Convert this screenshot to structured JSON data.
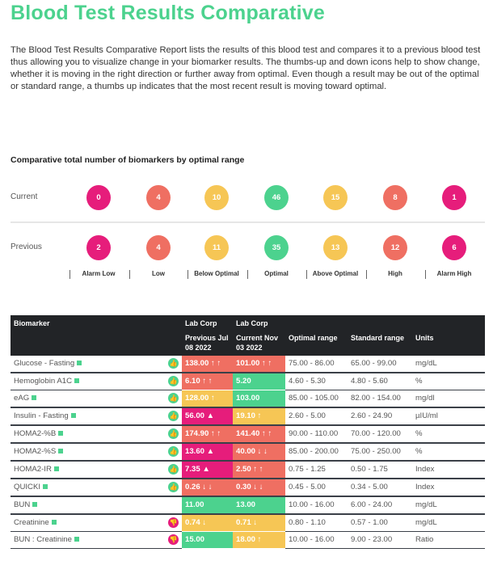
{
  "title": "Blood Test Results Comparative",
  "intro": "The Blood Test Results Comparative Report lists the results of this blood test and compares it to a previous blood test thus allowing you to visualize change in your biomarker results. The thumbs-up and down icons help to show change, whether it is moving in the right direction or further away from optimal. Even though a result may be out of the optimal or standard range, a thumbs up indicates that the most recent result is moving toward optimal.",
  "summary": {
    "title": "Comparative total number of biomarkers by optimal range",
    "current_label": "Current",
    "previous_label": "Previous",
    "categories": [
      "Alarm Low",
      "Low",
      "Below Optimal",
      "Optimal",
      "Above Optimal",
      "High",
      "Alarm High"
    ],
    "colors": [
      "#e61d7b",
      "#ef6f62",
      "#f6c655",
      "#4cd28e",
      "#f6c655",
      "#ef6f62",
      "#e61d7b"
    ],
    "current": [
      "0",
      "4",
      "10",
      "46",
      "15",
      "8",
      "1"
    ],
    "previous": [
      "2",
      "4",
      "11",
      "35",
      "13",
      "12",
      "6"
    ]
  },
  "colors": {
    "red": "#ef6f62",
    "green": "#4cd28e",
    "yellow": "#f6c655",
    "magenta": "#e61d7b"
  },
  "table": {
    "headers": {
      "biomarker": "Biomarker",
      "lab1": "Lab Corp",
      "prev": "Previous Jul 08 2022",
      "lab2": "Lab Corp",
      "curr": "Current Nov 03 2022",
      "optimal": "Optimal range",
      "standard": "Standard range",
      "units": "Units"
    },
    "rows": [
      {
        "name": "Glucose - Fasting",
        "thumb": "up",
        "prev": "138.00 ↑ ↑",
        "pc": "red",
        "curr": "101.00 ↑ ↑",
        "cc": "red",
        "opt": "75.00 - 86.00",
        "std": "65.00 - 99.00",
        "units": "mg/dL",
        "thick": false
      },
      {
        "name": "Hemoglobin A1C",
        "thumb": "up",
        "prev": "6.10 ↑ ↑",
        "pc": "red",
        "curr": "5.20",
        "cc": "green",
        "opt": "4.60 - 5.30",
        "std": "4.80 - 5.60",
        "units": "%",
        "thick": true
      },
      {
        "name": "eAG",
        "thumb": "up",
        "prev": "128.00 ↑",
        "pc": "yellow",
        "curr": "103.00",
        "cc": "green",
        "opt": "85.00 - 105.00",
        "std": "82.00 - 154.00",
        "units": "mg/dl",
        "thick": false
      },
      {
        "name": "Insulin - Fasting",
        "thumb": "up",
        "prev": "56.00 ▲",
        "pc": "magenta",
        "curr": "19.10 ↑",
        "cc": "yellow",
        "opt": "2.60 - 5.00",
        "std": "2.60 - 24.90",
        "units": "µIU/ml",
        "thick": true
      },
      {
        "name": "HOMA2-%B",
        "thumb": "up",
        "prev": "174.90 ↑ ↑",
        "pc": "red",
        "curr": "141.40 ↑ ↑",
        "cc": "red",
        "opt": "90.00 - 110.00",
        "std": "70.00 - 120.00",
        "units": "%",
        "thick": true
      },
      {
        "name": "HOMA2-%S",
        "thumb": "up",
        "prev": "13.60 ▲",
        "pc": "magenta",
        "curr": "40.00 ↓ ↓",
        "cc": "red",
        "opt": "85.00 - 200.00",
        "std": "75.00 - 250.00",
        "units": "%",
        "thick": true
      },
      {
        "name": "HOMA2-IR",
        "thumb": "up",
        "prev": "7.35 ▲",
        "pc": "magenta",
        "curr": "2.50 ↑ ↑",
        "cc": "red",
        "opt": "0.75 - 1.25",
        "std": "0.50 - 1.75",
        "units": "Index",
        "thick": true
      },
      {
        "name": "QUICKI",
        "thumb": "up",
        "prev": "0.26 ↓ ↓",
        "pc": "red",
        "curr": "0.30 ↓ ↓",
        "cc": "red",
        "opt": "0.45 - 5.00",
        "std": "0.34 - 5.00",
        "units": "Index",
        "thick": true
      },
      {
        "name": "BUN",
        "thumb": "",
        "prev": "11.00",
        "pc": "green",
        "curr": "13.00",
        "cc": "green",
        "opt": "10.00 - 16.00",
        "std": "6.00 - 24.00",
        "units": "mg/dL",
        "thick": true
      },
      {
        "name": "Creatinine",
        "thumb": "down",
        "prev": "0.74 ↓",
        "pc": "yellow",
        "curr": "0.71 ↓",
        "cc": "yellow",
        "opt": "0.80 - 1.10",
        "std": "0.57 - 1.00",
        "units": "mg/dL",
        "thick": true
      },
      {
        "name": "BUN : Creatinine",
        "thumb": "down",
        "prev": "15.00",
        "pc": "green",
        "curr": "18.00 ↑",
        "cc": "yellow",
        "opt": "10.00 - 16.00",
        "std": "9.00 - 23.00",
        "units": "Ratio",
        "thick": false
      }
    ]
  }
}
